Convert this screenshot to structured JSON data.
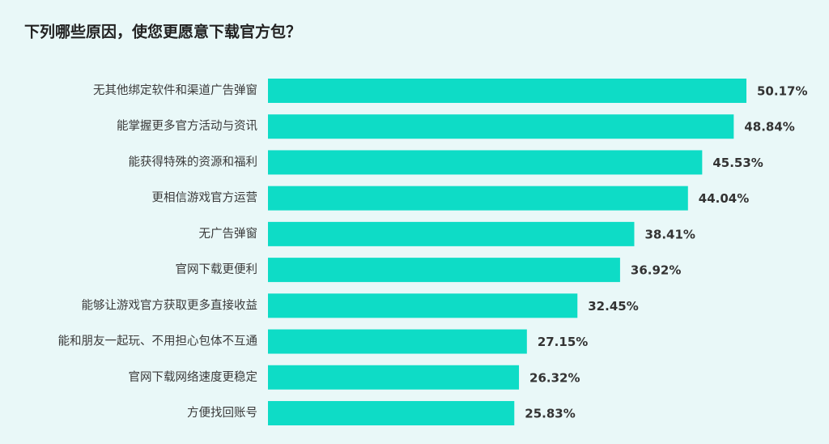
{
  "chart_data": {
    "type": "bar",
    "orientation": "horizontal",
    "title": "下列哪些原因，使您更愿意下载官方包？",
    "categories": [
      "无其他绑定软件和渠道广告弹窗",
      "能掌握更多官方活动与资讯",
      "能获得特殊的资源和福利",
      "更相信游戏官方运营",
      "无广告弹窗",
      "官网下载更便利",
      "能够让游戏官方获取更多直接收益",
      "能和朋友一起玩、不用担心包体不互通",
      "官网下载网络速度更稳定",
      "方便找回账号"
    ],
    "values": [
      50.17,
      48.84,
      45.53,
      44.04,
      38.41,
      36.92,
      32.45,
      27.15,
      26.32,
      25.83
    ],
    "value_labels": [
      "50.17%",
      "48.84%",
      "45.53%",
      "44.04%",
      "38.41%",
      "36.92%",
      "32.45%",
      "27.15%",
      "26.32%",
      "25.83%"
    ],
    "color": "#0edcc6"
  }
}
